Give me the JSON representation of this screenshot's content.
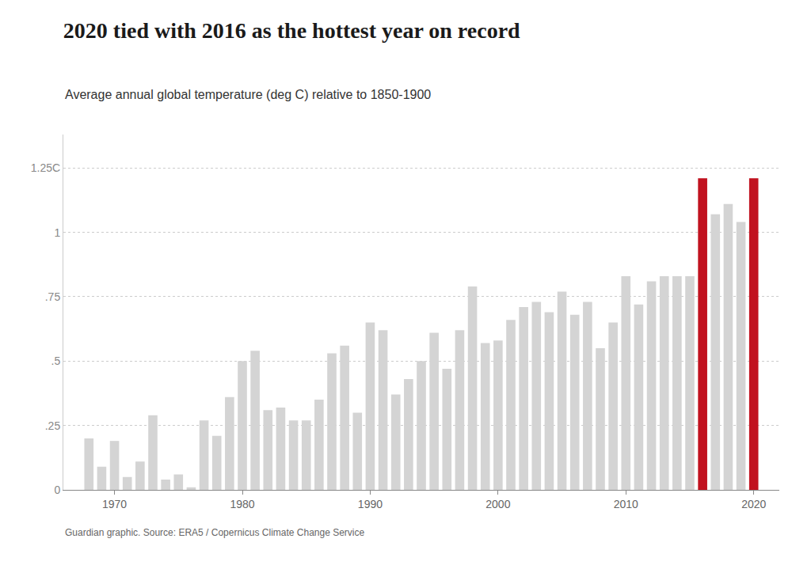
{
  "chart_data": {
    "type": "bar",
    "title": "2020 tied with 2016 as the hottest year on record",
    "subtitle": "Average annual global temperature (deg C) relative to 1850-1900",
    "source": "Guardian graphic. Source: ERA5 / Copernicus Climate Change Service",
    "x": [
      1968,
      1969,
      1970,
      1971,
      1972,
      1973,
      1974,
      1975,
      1976,
      1977,
      1978,
      1979,
      1980,
      1981,
      1982,
      1983,
      1984,
      1985,
      1986,
      1987,
      1988,
      1989,
      1990,
      1991,
      1992,
      1993,
      1994,
      1995,
      1996,
      1997,
      1998,
      1999,
      2000,
      2001,
      2002,
      2003,
      2004,
      2005,
      2006,
      2007,
      2008,
      2009,
      2010,
      2011,
      2012,
      2013,
      2014,
      2015,
      2016,
      2017,
      2018,
      2019,
      2020
    ],
    "values": [
      0.2,
      0.09,
      0.19,
      0.05,
      0.11,
      0.29,
      0.04,
      0.06,
      0.01,
      0.27,
      0.21,
      0.36,
      0.5,
      0.54,
      0.31,
      0.32,
      0.27,
      0.27,
      0.35,
      0.53,
      0.56,
      0.3,
      0.65,
      0.62,
      0.37,
      0.43,
      0.5,
      0.61,
      0.47,
      0.62,
      0.79,
      0.57,
      0.58,
      0.66,
      0.71,
      0.73,
      0.69,
      0.77,
      0.68,
      0.73,
      0.55,
      0.65,
      0.83,
      0.72,
      0.81,
      0.83,
      0.83,
      0.83,
      1.21,
      1.07,
      1.11,
      1.04,
      1.21
    ],
    "colors": [
      "#d4d4d4",
      "#d4d4d4",
      "#d4d4d4",
      "#d4d4d4",
      "#d4d4d4",
      "#d4d4d4",
      "#d4d4d4",
      "#d4d4d4",
      "#d4d4d4",
      "#d4d4d4",
      "#d4d4d4",
      "#d4d4d4",
      "#d4d4d4",
      "#d4d4d4",
      "#d4d4d4",
      "#d4d4d4",
      "#d4d4d4",
      "#d4d4d4",
      "#d4d4d4",
      "#d4d4d4",
      "#d4d4d4",
      "#d4d4d4",
      "#d4d4d4",
      "#d4d4d4",
      "#d4d4d4",
      "#d4d4d4",
      "#d4d4d4",
      "#d4d4d4",
      "#d4d4d4",
      "#d4d4d4",
      "#d4d4d4",
      "#d4d4d4",
      "#d4d4d4",
      "#d4d4d4",
      "#d4d4d4",
      "#d4d4d4",
      "#d4d4d4",
      "#d4d4d4",
      "#d4d4d4",
      "#d4d4d4",
      "#d4d4d4",
      "#d4d4d4",
      "#d4d4d4",
      "#d4d4d4",
      "#d4d4d4",
      "#d4d4d4",
      "#d4d4d4",
      "#d4d4d4",
      "#c1121f",
      "#d4d4d4",
      "#d4d4d4",
      "#d4d4d4",
      "#c1121f"
    ],
    "xlim": [
      1966,
      2022
    ],
    "xticks": [
      1970,
      1980,
      1990,
      2000,
      2010,
      2020
    ],
    "ylim": [
      0,
      1.38
    ],
    "yticks": [
      0,
      {
        "value": 0.25,
        "label": ".25"
      },
      {
        "value": 0.5,
        "label": ".5"
      },
      {
        "value": 0.75,
        "label": ".75"
      },
      1,
      {
        "value": 1.25,
        "label": "1.25C"
      }
    ],
    "grid": true
  }
}
